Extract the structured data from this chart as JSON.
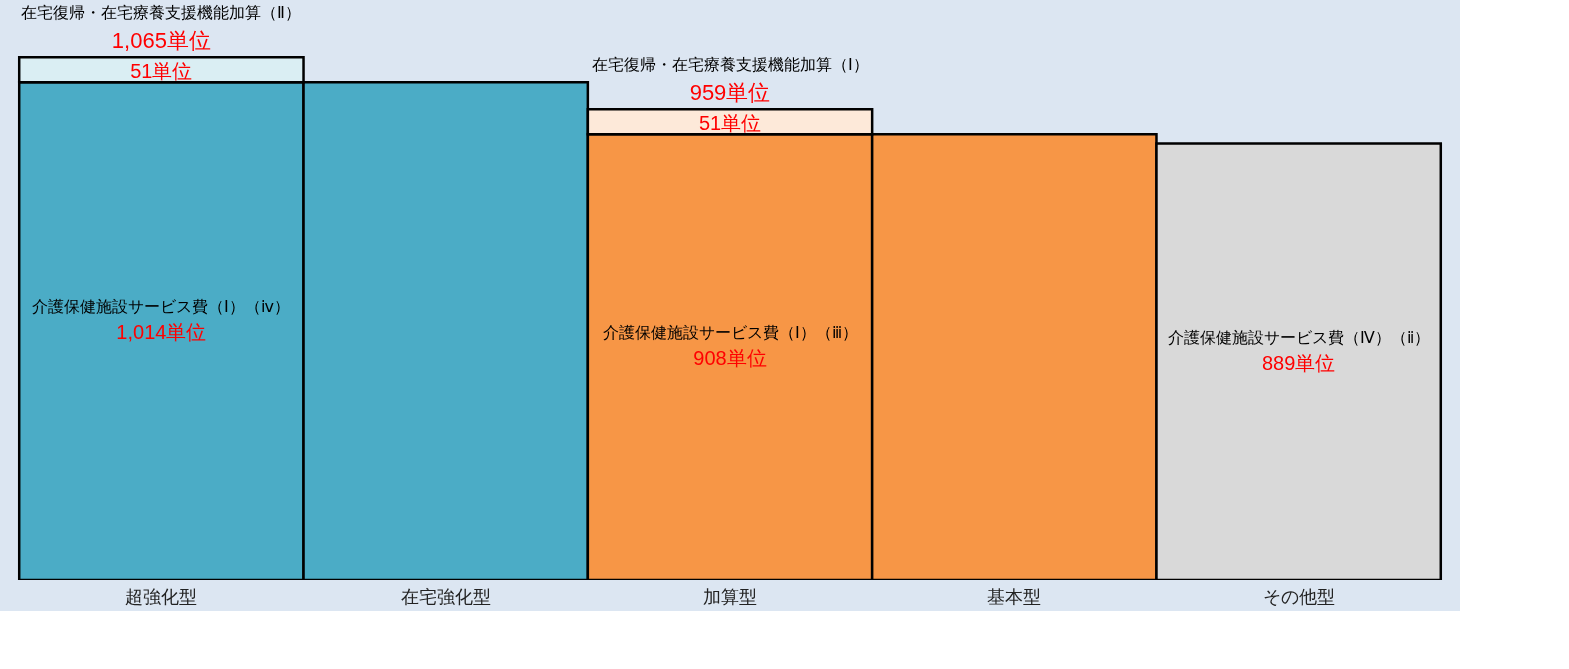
{
  "chart_data": {
    "type": "bar",
    "stacked": true,
    "categories": [
      "超強化型",
      "在宅強化型",
      "加算型",
      "基本型",
      "その他型"
    ],
    "series": [
      {
        "colors": [
          "#4bacc6",
          "#4bacc6",
          "#f79646",
          "#f79646",
          "#d9d9d9"
        ],
        "values": [
          1014,
          1014,
          908,
          908,
          889
        ],
        "value_labels": [
          "1,014単位",
          null,
          "908単位",
          null,
          "889単位"
        ]
      },
      {
        "colors": [
          "#daeef3",
          null,
          "#fde9d9",
          null,
          null
        ],
        "values": [
          51,
          null,
          51,
          null,
          null
        ],
        "value_labels": [
          "51単位",
          null,
          "51単位",
          null,
          null
        ]
      }
    ],
    "totals": [
      "1,065単位",
      null,
      "959単位",
      null,
      null
    ],
    "tick_labels": "x",
    "grid": false,
    "legend": false,
    "annotations": [
      "在宅復帰・在宅療養支援機能加算（Ⅱ）",
      "在宅復帰・在宅療養支援機能加算（Ⅰ）",
      "介護保健施設サービス費（Ⅰ）（ⅳ）",
      "介護保健施設サービス費（Ⅰ）（ⅲ）",
      "介護保健施設サービス費（Ⅳ）（ⅱ）"
    ]
  }
}
